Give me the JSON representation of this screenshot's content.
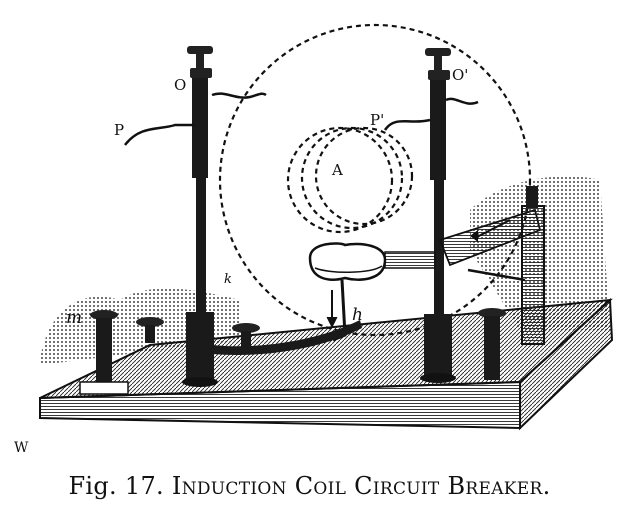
{
  "figure": {
    "labels": {
      "O": "O",
      "O_prime": "O'",
      "P": "P",
      "P_prime": "P'",
      "A": "A",
      "h": "h",
      "m": "m",
      "k": "k",
      "W": "W"
    },
    "caption": {
      "number": "Fig. 17.",
      "title": "Induction Coil Circuit Breaker."
    }
  }
}
